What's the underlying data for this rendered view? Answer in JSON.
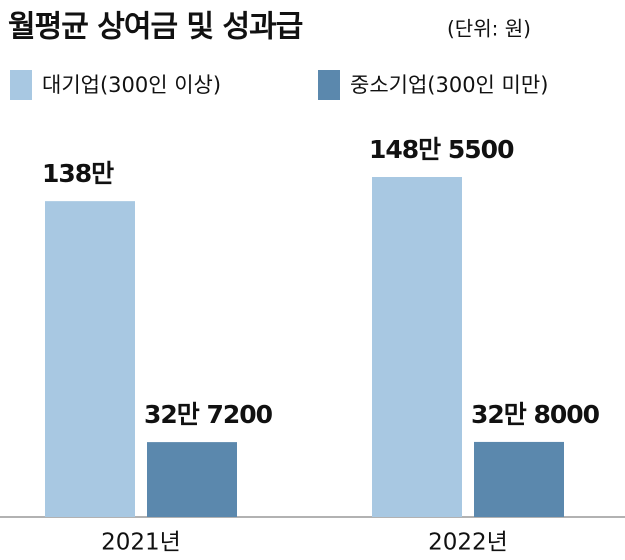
{
  "chart_data": {
    "type": "bar",
    "title": "월평균 상여금 및 성과급",
    "subtitle": "(단위: 원)",
    "categories": [
      "2021년",
      "2022년"
    ],
    "series": [
      {
        "name": "대기업(300인 이상)",
        "color": "#a8c8e2",
        "values": [
          1380000,
          1485500
        ],
        "value_labels": [
          "138만",
          "148만 5500"
        ]
      },
      {
        "name": "중소기업(300인 미만)",
        "color": "#5b88ad",
        "values": [
          327200,
          328000
        ],
        "value_labels": [
          "32만 7200",
          "32만 8000"
        ]
      }
    ]
  }
}
